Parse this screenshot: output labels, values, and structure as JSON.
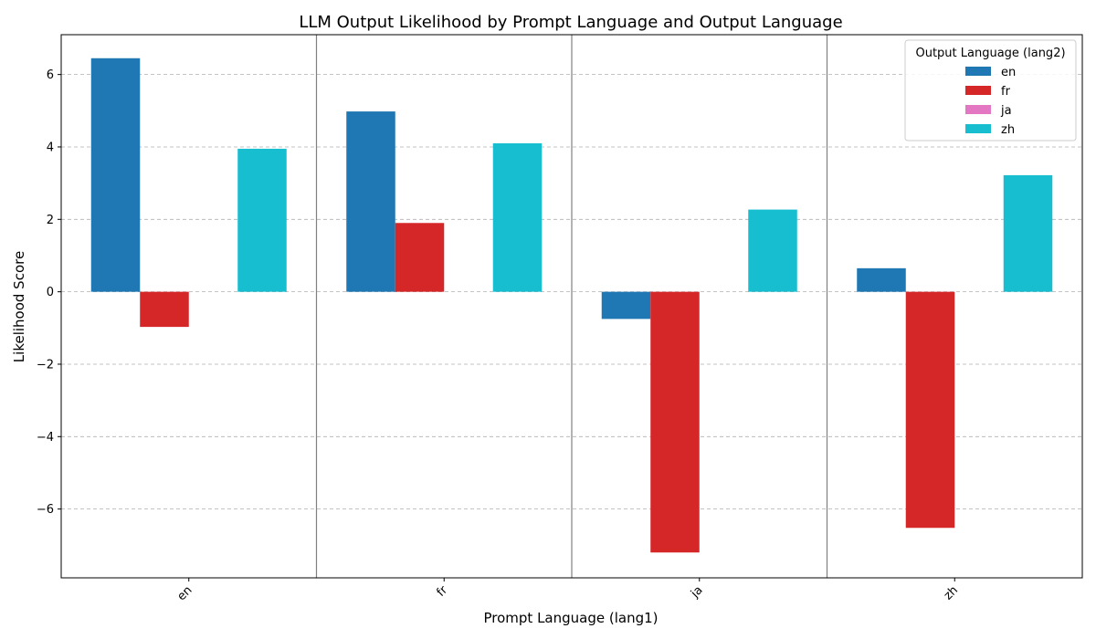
{
  "chart_data": {
    "type": "bar",
    "title": "LLM Output Likelihood by Prompt Language and Output Language",
    "xlabel": "Prompt Language (lang1)",
    "ylabel": "Likelihood Score",
    "categories": [
      "en",
      "fr",
      "ja",
      "zh"
    ],
    "series": [
      {
        "name": "en",
        "color": "#1f77b4",
        "values": [
          6.45,
          4.98,
          -0.75,
          0.65
        ]
      },
      {
        "name": "fr",
        "color": "#d62728",
        "values": [
          -0.97,
          1.9,
          -7.2,
          -6.52
        ]
      },
      {
        "name": "ja",
        "color": "#e377c2",
        "values": [
          0,
          0,
          0,
          0
        ]
      },
      {
        "name": "zh",
        "color": "#17becf",
        "values": [
          3.95,
          4.1,
          2.27,
          3.22
        ]
      }
    ],
    "ylim": [
      -7.9,
      7.1
    ],
    "yticks": [
      -6,
      -4,
      -2,
      0,
      2,
      4,
      6
    ],
    "ytick_labels": [
      "−6",
      "−4",
      "−2",
      "0",
      "2",
      "4",
      "6"
    ],
    "grid": true,
    "legend": {
      "title": "Output Language (lang2)",
      "position": "top-right"
    }
  }
}
